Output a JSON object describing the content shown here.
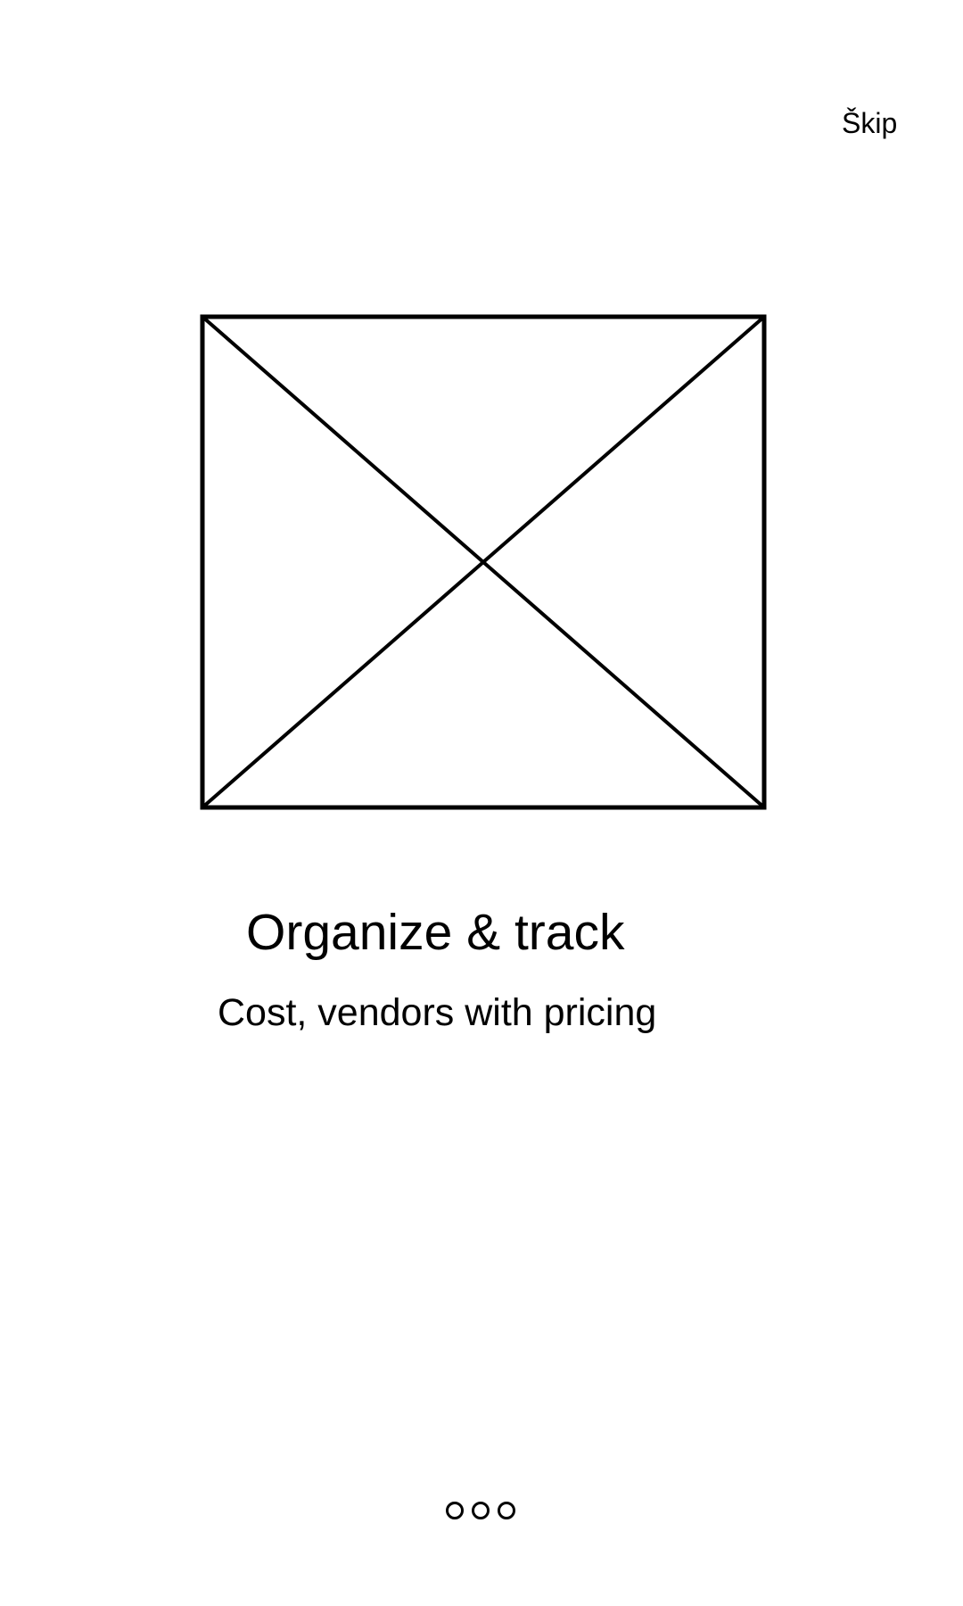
{
  "header": {
    "skip_label": "Škip"
  },
  "onboarding": {
    "title": "Organize & track",
    "subtitle": "Cost, vendors with pricing"
  },
  "pager": {
    "page_count": 3
  },
  "colors": {
    "background": "#ffffff",
    "foreground": "#000000"
  }
}
